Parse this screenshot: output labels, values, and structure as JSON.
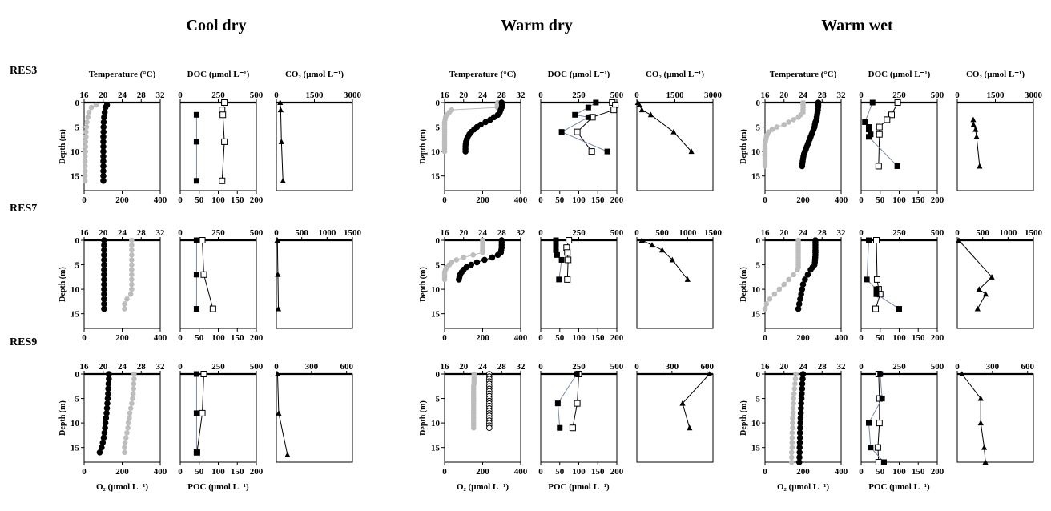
{
  "figure": {
    "scenarios": [
      "Cool dry",
      "Warm dry",
      "Warm wet"
    ],
    "reservoirs": [
      "RES3",
      "RES7",
      "RES9"
    ],
    "labels": {
      "depth": "Depth (m)",
      "temperature": "Temperature (°C)",
      "doc": "DOC (μmol L⁻¹)",
      "co2": "CO₂ (μmol L⁻¹)",
      "o2": "O₂ (μmol L⁻¹)",
      "poc": "POC (μmol L⁻¹)"
    }
  },
  "chart_data": {
    "type": "scatter",
    "axes": {
      "depth_range": [
        0,
        18
      ],
      "depth_ticks": [
        0,
        5,
        10,
        15
      ],
      "temperature": {
        "range": [
          16,
          32
        ],
        "ticks": [
          16,
          20,
          24,
          28,
          32
        ]
      },
      "o2": {
        "range": [
          0,
          400
        ],
        "ticks": [
          0,
          200,
          400
        ]
      },
      "doc": {
        "range": [
          0,
          500
        ],
        "ticks": [
          0,
          250,
          500
        ]
      },
      "poc": {
        "range": [
          0,
          200
        ],
        "ticks": [
          0,
          50,
          100,
          150,
          200
        ]
      },
      "co2_ticks": {
        "RES3": [
          0,
          1500,
          3000
        ],
        "RES7": [
          0,
          500,
          1000,
          1500
        ],
        "RES9": [
          0,
          300,
          600
        ]
      }
    },
    "series_legend": {
      "temperature": "grey filled circles",
      "o2": "black filled circles (open circles in Warm dry RES9)",
      "doc": "open squares",
      "poc": "black filled squares",
      "co2": "black triangles"
    },
    "panels": [
      {
        "scenario": "Cool dry",
        "reservoir": "RES3",
        "depths": [
          0.5,
          1,
          2,
          3,
          4,
          5,
          6,
          7,
          8,
          9,
          10,
          11,
          12,
          13,
          14,
          15,
          16
        ],
        "temperature": [
          18.5,
          17.5,
          17,
          16.8,
          16.6,
          16.5,
          16.4,
          16.4,
          16.3,
          16.3,
          16.3,
          16.2,
          16.2,
          16.2,
          16.2,
          16.2,
          16.2
        ],
        "o2": [
          120,
          112,
          108,
          105,
          103,
          102,
          102,
          101,
          101,
          101,
          101,
          101,
          101,
          101,
          101,
          101,
          101
        ],
        "doc": {
          "depth": [
            0,
            1.5,
            2.5,
            8,
            16
          ],
          "value": [
            290,
            275,
            280,
            290,
            275
          ]
        },
        "poc": {
          "depth": [
            2.5,
            8,
            16
          ],
          "value": [
            43,
            43,
            43
          ]
        },
        "co2": {
          "depth": [
            0,
            1.5,
            8,
            16
          ],
          "value": [
            150,
            170,
            200,
            260
          ]
        },
        "co2_range": [
          0,
          3000
        ]
      },
      {
        "scenario": "Cool dry",
        "reservoir": "RES7",
        "depths": [
          0,
          1,
          2,
          3,
          4,
          5,
          6,
          7,
          8,
          9,
          10,
          11,
          12,
          13,
          14
        ],
        "temperature": [
          26,
          26,
          26,
          26,
          26,
          26,
          26,
          26,
          26,
          26,
          26,
          25.8,
          25,
          24.5,
          24.5
        ],
        "o2": [
          105,
          105,
          105,
          105,
          105,
          105,
          105,
          105,
          105,
          105,
          105,
          105,
          105,
          105,
          105
        ],
        "doc": {
          "depth": [
            0,
            7,
            14
          ],
          "value": [
            145,
            155,
            215
          ]
        },
        "poc": {
          "depth": [
            0,
            7,
            14
          ],
          "value": [
            43,
            43,
            43
          ]
        },
        "co2": {
          "depth": [
            0,
            7,
            14
          ],
          "value": [
            20,
            30,
            40
          ]
        },
        "co2_range": [
          0,
          1500
        ]
      },
      {
        "scenario": "Cool dry",
        "reservoir": "RES9",
        "depths": [
          0,
          1,
          2,
          3,
          4,
          5,
          6,
          7,
          8,
          9,
          10,
          11,
          12,
          13,
          14,
          15,
          16
        ],
        "temperature": [
          26.5,
          26.5,
          26.4,
          26.4,
          26.3,
          26.2,
          26,
          25.8,
          25.6,
          25.5,
          25.3,
          25.2,
          25,
          24.8,
          24.6,
          24.5,
          24.5
        ],
        "o2": [
          130,
          130,
          128,
          127,
          126,
          124,
          122,
          120,
          118,
          115,
          112,
          110,
          107,
          103,
          98,
          92,
          82
        ],
        "doc": {
          "depth": [
            0,
            8,
            16
          ],
          "value": [
            155,
            145,
            110
          ]
        },
        "poc": {
          "depth": [
            0,
            8,
            16
          ],
          "value": [
            43,
            43,
            43
          ]
        },
        "co2": {
          "depth": [
            0,
            8,
            16.5
          ],
          "value": [
            10,
            20,
            95
          ]
        },
        "co2_range": [
          0,
          650
        ]
      },
      {
        "scenario": "Warm dry",
        "reservoir": "RES3",
        "depths": [
          0,
          0.5,
          1,
          1.5,
          2,
          2.5,
          3,
          3.5,
          4,
          4.5,
          5,
          5.5,
          6,
          6.5,
          7,
          7.5,
          8,
          8.5,
          9,
          9.5,
          10
        ],
        "temperature": [
          27.2,
          27.1,
          27.1,
          17.5,
          17,
          16.5,
          16.2,
          16.1,
          16,
          16,
          16,
          16,
          16,
          16,
          16,
          16,
          16,
          16,
          16,
          16,
          16
        ],
        "o2": [
          300,
          302,
          300,
          295,
          290,
          280,
          260,
          240,
          215,
          190,
          170,
          155,
          140,
          130,
          122,
          117,
          113,
          111,
          110,
          110,
          110
        ],
        "doc": {
          "depth": [
            0,
            0.5,
            1.5,
            3,
            6,
            10
          ],
          "value": [
            470,
            490,
            480,
            340,
            240,
            335
          ]
        },
        "poc": {
          "depth": [
            0,
            1,
            2.5,
            3,
            6,
            10
          ],
          "value": [
            145,
            125,
            90,
            125,
            55,
            175
          ]
        },
        "co2": {
          "depth": [
            0,
            0.5,
            1.5,
            2.5,
            6,
            10
          ],
          "value": [
            40,
            100,
            200,
            550,
            1450,
            2150
          ]
        },
        "co2_range": [
          0,
          3000
        ]
      },
      {
        "scenario": "Warm dry",
        "reservoir": "RES7",
        "depths": [
          0,
          0.5,
          1,
          1.5,
          2,
          2.5,
          3,
          3.5,
          4,
          4.5,
          5,
          5.5,
          6,
          6.5,
          7,
          7.5,
          8
        ],
        "temperature": [
          24,
          24,
          24,
          24,
          24,
          24,
          22,
          20,
          18.5,
          17.5,
          17,
          16.5,
          16.2,
          16,
          16,
          16,
          16
        ],
        "o2": [
          300,
          300,
          300,
          300,
          298,
          296,
          280,
          250,
          210,
          170,
          140,
          115,
          100,
          90,
          82,
          78,
          75
        ],
        "doc": {
          "depth": [
            0,
            1.5,
            2.5,
            4,
            8
          ],
          "value": [
            185,
            170,
            175,
            180,
            175
          ]
        },
        "poc": {
          "depth": [
            0,
            1,
            2,
            3,
            4,
            8
          ],
          "value": [
            40,
            40,
            40,
            43,
            55,
            48
          ]
        },
        "co2": {
          "depth": [
            0,
            1,
            2,
            4,
            8
          ],
          "value": [
            100,
            300,
            500,
            700,
            1000
          ]
        },
        "co2_range": [
          0,
          1500
        ]
      },
      {
        "scenario": "Warm dry",
        "reservoir": "RES9",
        "depths": [
          0,
          0.5,
          1,
          1.5,
          2,
          2.5,
          3,
          3.5,
          4,
          4.5,
          5,
          5.5,
          6,
          6.5,
          7,
          7.5,
          8,
          8.5,
          9,
          9.5,
          10,
          10.5,
          11
        ],
        "temperature": [
          22.2,
          22.2,
          22.2,
          22.2,
          22.2,
          22.1,
          22.1,
          22.1,
          22.1,
          22.1,
          22.1,
          22.1,
          22.1,
          22.1,
          22.1,
          22.1,
          22.1,
          22.1,
          22.1,
          22.1,
          22.1,
          22.1,
          22.1
        ],
        "o2": [
          235,
          235,
          235,
          235,
          235,
          235,
          235,
          235,
          235,
          235,
          235,
          235,
          235,
          235,
          235,
          235,
          235,
          235,
          235,
          235,
          235,
          235,
          235
        ],
        "doc": {
          "depth": [
            0,
            6,
            11
          ],
          "value": [
            250,
            240,
            210
          ]
        },
        "poc": {
          "depth": [
            0,
            6,
            11
          ],
          "value": [
            95,
            45,
            50
          ]
        },
        "co2": {
          "depth": [
            0,
            6,
            11
          ],
          "value": [
            620,
            390,
            450
          ]
        },
        "co2_range": [
          0,
          650
        ]
      },
      {
        "scenario": "Warm wet",
        "reservoir": "RES3",
        "depths": [
          0,
          0.5,
          1,
          1.5,
          2,
          2.5,
          3,
          3.5,
          4,
          4.5,
          5,
          5.5,
          6,
          6.5,
          7,
          7.5,
          8,
          8.5,
          9,
          9.5,
          10,
          10.5,
          11,
          11.5,
          12,
          12.5,
          13
        ],
        "temperature": [
          24,
          24,
          24,
          24,
          24,
          23.5,
          23,
          22,
          21,
          20,
          18.5,
          17.5,
          16.8,
          16.5,
          16.3,
          16.2,
          16.1,
          16,
          16,
          16,
          16,
          16,
          16,
          16,
          16,
          16,
          16
        ],
        "o2": [
          280,
          280,
          279,
          278,
          276,
          274,
          272,
          270,
          265,
          262,
          260,
          255,
          250,
          245,
          240,
          235,
          230,
          225,
          220,
          215,
          210,
          205,
          202,
          200,
          198,
          196,
          195
        ],
        "doc": {
          "depth": [
            0,
            2.5,
            3.5,
            5,
            6.5,
            13
          ],
          "value": [
            240,
            200,
            170,
            120,
            120,
            115
          ]
        },
        "poc": {
          "depth": [
            0,
            4,
            5,
            5.5,
            6.5,
            7,
            13
          ],
          "value": [
            30,
            10,
            20,
            20,
            25,
            20,
            95
          ]
        },
        "co2": {
          "depth": [
            3.5,
            4.5,
            5.5,
            7,
            13
          ],
          "value": [
            630,
            640,
            720,
            760,
            880
          ]
        },
        "co2_range": [
          0,
          3000
        ]
      },
      {
        "scenario": "Warm wet",
        "reservoir": "RES7",
        "depths": [
          0,
          0.5,
          1,
          1.5,
          2,
          2.5,
          3,
          3.5,
          4,
          4.5,
          5,
          5.5,
          6,
          7,
          8,
          9,
          10,
          11,
          12,
          13,
          14
        ],
        "temperature": [
          23,
          23,
          23,
          23,
          23,
          23,
          23,
          23,
          23,
          23,
          23,
          23,
          22.8,
          22,
          21,
          20,
          19,
          18,
          17,
          16.3,
          16
        ],
        "o2": [
          265,
          265,
          265,
          265,
          265,
          265,
          265,
          264,
          263,
          262,
          260,
          250,
          240,
          225,
          210,
          200,
          195,
          190,
          185,
          180,
          175
        ],
        "doc": {
          "depth": [
            0,
            8,
            10,
            11,
            14
          ],
          "value": [
            100,
            105,
            115,
            125,
            95
          ]
        },
        "poc": {
          "depth": [
            0,
            8,
            10,
            11,
            14
          ],
          "value": [
            20,
            15,
            40,
            40,
            100
          ]
        },
        "co2": {
          "depth": [
            0,
            7.5,
            10,
            11,
            14
          ],
          "value": [
            30,
            680,
            430,
            560,
            400
          ]
        },
        "co2_range": [
          0,
          1500
        ]
      },
      {
        "scenario": "Warm wet",
        "reservoir": "RES9",
        "depths": [
          0,
          1,
          2,
          3,
          4,
          5,
          6,
          7,
          8,
          9,
          10,
          11,
          12,
          13,
          14,
          15,
          16,
          17,
          18
        ],
        "temperature": [
          22.5,
          22.4,
          22.3,
          22.2,
          22.1,
          22,
          22,
          21.9,
          21.9,
          21.8,
          21.8,
          21.8,
          21.7,
          21.7,
          21.7,
          21.7,
          21.6,
          21.6,
          21.6
        ],
        "o2": [
          200,
          198,
          196,
          195,
          193,
          192,
          190,
          189,
          188,
          187,
          186,
          185,
          184,
          184,
          183,
          182,
          182,
          181,
          180
        ],
        "doc": {
          "depth": [
            0,
            5,
            10,
            15,
            18
          ],
          "value": [
            115,
            120,
            120,
            110,
            115
          ]
        },
        "poc": {
          "depth": [
            0,
            5,
            10,
            15,
            18
          ],
          "value": [
            50,
            55,
            20,
            25,
            60
          ]
        },
        "co2": {
          "depth": [
            0,
            5,
            10,
            15,
            18
          ],
          "value": [
            40,
            200,
            200,
            230,
            240
          ]
        },
        "co2_range": [
          0,
          650
        ]
      }
    ]
  }
}
